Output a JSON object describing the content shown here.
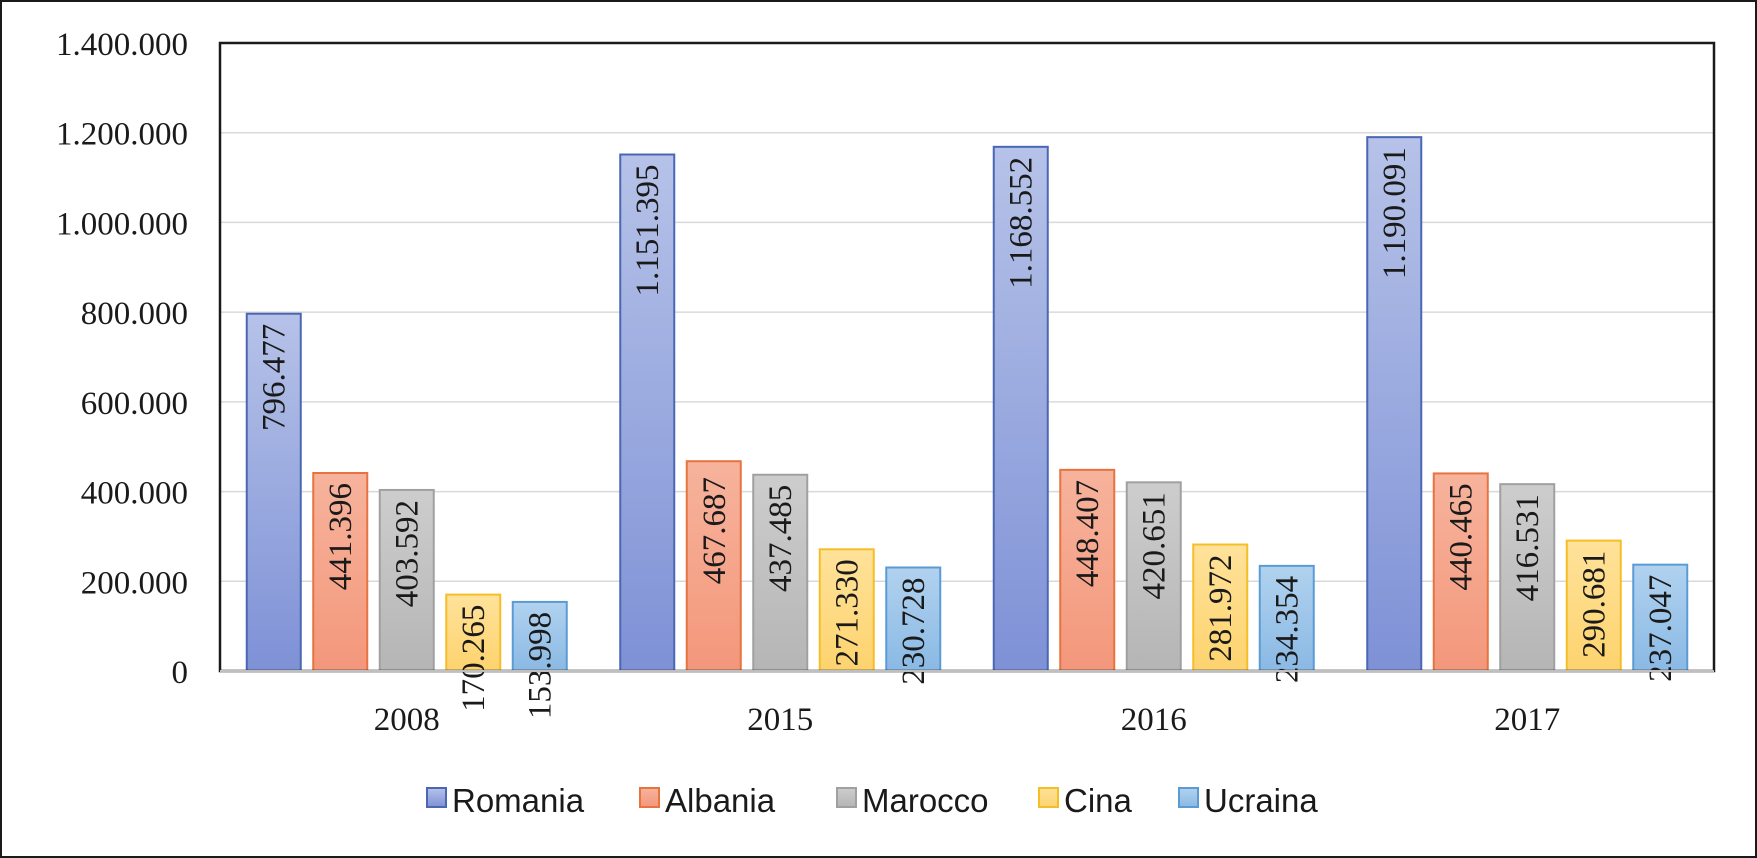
{
  "chart_data": {
    "type": "bar",
    "categories": [
      "2008",
      "2015",
      "2016",
      "2017"
    ],
    "series": [
      {
        "name": "Romania",
        "values": [
          796477,
          1151395,
          1168552,
          1190091
        ],
        "labels": [
          "796.477",
          "1.151.395",
          "1.168.552",
          "1.190.091"
        ]
      },
      {
        "name": "Albania",
        "values": [
          441396,
          467687,
          448407,
          440465
        ],
        "labels": [
          "441.396",
          "467.687",
          "448.407",
          "440.465"
        ]
      },
      {
        "name": "Marocco",
        "values": [
          403592,
          437485,
          420651,
          416531
        ],
        "labels": [
          "403.592",
          "437.485",
          "420.651",
          "416.531"
        ]
      },
      {
        "name": "Cina",
        "values": [
          170265,
          271330,
          281972,
          290681
        ],
        "labels": [
          "170.265",
          "271.330",
          "281.972",
          "290.681"
        ]
      },
      {
        "name": "Ucraina",
        "values": [
          153998,
          230728,
          234354,
          237047
        ],
        "labels": [
          "153.998",
          "230.728",
          "234.354",
          "237.047"
        ]
      }
    ],
    "ylim": [
      0,
      1400000
    ],
    "yticks": [
      0,
      200000,
      400000,
      600000,
      800000,
      1000000,
      1200000,
      1400000
    ],
    "ytick_labels": [
      "0",
      "200.000",
      "400.000",
      "600.000",
      "800.000",
      "1.000.000",
      "1.200.000",
      "1.400.000"
    ],
    "grid": true,
    "legend_position": "bottom",
    "colors": {
      "Romania": {
        "top": "#b6c2e8",
        "bottom": "#7e91d6",
        "edge": "#4a67b4"
      },
      "Albania": {
        "top": "#f7b39c",
        "bottom": "#f3977b",
        "edge": "#e7733f"
      },
      "Marocco": {
        "top": "#cdcdcd",
        "bottom": "#b5b5b5",
        "edge": "#a0a0a0"
      },
      "Cina": {
        "top": "#ffe29a",
        "bottom": "#fdd36e",
        "edge": "#f5be27"
      },
      "Ucraina": {
        "top": "#b1d2ef",
        "bottom": "#8ab9e4",
        "edge": "#5b9bd5"
      }
    }
  }
}
